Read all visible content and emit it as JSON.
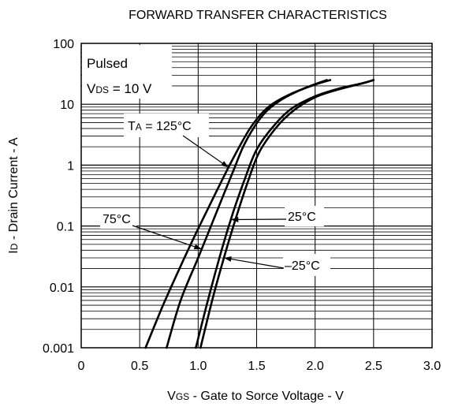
{
  "chart_data": {
    "type": "line",
    "title": "FORWARD TRANSFER CHARACTERISTICS",
    "xlabel": "VGS - Gate to Sorce Voltage - V",
    "xlabel_parts": {
      "main": "V",
      "sub": "GS",
      "rest": " - Gate to Sorce Voltage - V"
    },
    "ylabel": "ID - Drain Current - A",
    "ylabel_parts": {
      "main": "I",
      "sub": "D",
      "rest": " - Drain Current - A"
    },
    "xlim": [
      0,
      3.0
    ],
    "ylim": [
      0.001,
      100
    ],
    "y_scale": "log",
    "grid": true,
    "x_ticks": [
      "0",
      "0.5",
      "1.0",
      "1.5",
      "2.0",
      "2.5",
      "3.0"
    ],
    "y_ticks": [
      "0.001",
      "0.01",
      "0.1",
      "1",
      "10",
      "100"
    ],
    "conditions": {
      "line1": "Pulsed",
      "line2_main": "V",
      "line2_sub": "DS",
      "line2_rest": " = 10 V"
    },
    "series": [
      {
        "name": "TA = 125°C",
        "x": [
          0.55,
          0.7,
          0.85,
          1.0,
          1.15,
          1.3,
          1.45,
          1.6,
          1.8,
          2.0,
          2.13
        ],
        "y": [
          0.001,
          0.005,
          0.022,
          0.09,
          0.35,
          1.3,
          4.2,
          9.0,
          15.0,
          21.0,
          25.0
        ]
      },
      {
        "name": "75°C",
        "x": [
          0.73,
          0.85,
          1.0,
          1.1,
          1.2,
          1.3,
          1.4,
          1.55,
          1.7,
          1.9,
          2.1
        ],
        "y": [
          0.001,
          0.006,
          0.03,
          0.09,
          0.27,
          0.8,
          2.3,
          6.5,
          11.5,
          18.0,
          25.0
        ]
      },
      {
        "name": "25°C",
        "x": [
          0.98,
          1.1,
          1.2,
          1.3,
          1.4,
          1.5,
          1.65,
          1.8,
          2.0,
          2.2,
          2.4,
          2.5
        ],
        "y": [
          0.001,
          0.008,
          0.04,
          0.17,
          0.6,
          1.8,
          4.5,
          8.5,
          13.5,
          18.0,
          22.0,
          25.0
        ]
      },
      {
        "name": "–25°C",
        "x": [
          1.02,
          1.12,
          1.22,
          1.32,
          1.42,
          1.52,
          1.67,
          1.82,
          2.0,
          2.2,
          2.4,
          2.5
        ],
        "y": [
          0.001,
          0.006,
          0.03,
          0.13,
          0.5,
          1.6,
          4.2,
          8.0,
          13.0,
          17.5,
          22.0,
          25.0
        ]
      }
    ],
    "annotations": [
      {
        "main": "T",
        "sub": "A",
        "rest": " = 125°C",
        "target_series": 0,
        "target_x": 1.26
      },
      {
        "main": "",
        "sub": "",
        "rest": "75°C",
        "target_series": 1,
        "target_x": 1.03
      },
      {
        "main": "",
        "sub": "",
        "rest": "25°C",
        "target_series": 2,
        "target_x": 1.28
      },
      {
        "main": "",
        "sub": "",
        "rest": "–25°C",
        "target_series": 3,
        "target_x": 1.22
      }
    ]
  }
}
